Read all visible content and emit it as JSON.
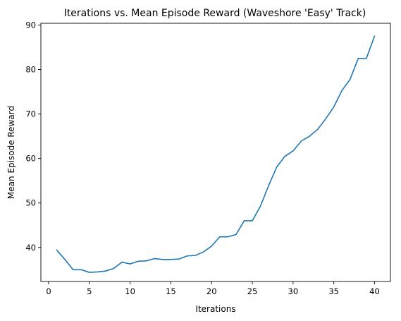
{
  "chart_data": {
    "type": "line",
    "title": "Iterations vs. Mean Episode Reward (Waveshore 'Easy' Track)",
    "xlabel": "Iterations",
    "ylabel": "Mean Episode Reward",
    "xlim": [
      -0.95,
      41.95
    ],
    "ylim": [
      32.35,
      90.4
    ],
    "xticks": [
      0,
      5,
      10,
      15,
      20,
      25,
      30,
      35,
      40
    ],
    "yticks": [
      40,
      50,
      60,
      70,
      80,
      90
    ],
    "grid": false,
    "series": [
      {
        "color": "#1f77b4",
        "x": [
          1,
          2,
          3,
          4,
          5,
          6,
          7,
          8,
          9,
          10,
          11,
          12,
          13,
          14,
          15,
          16,
          17,
          18,
          19,
          20,
          21,
          22,
          23,
          24,
          25,
          26,
          27,
          28,
          29,
          30,
          31,
          32,
          33,
          34,
          35,
          36,
          37,
          38,
          39,
          40
        ],
        "y": [
          39.4,
          37.3,
          35.0,
          35.0,
          34.4,
          34.5,
          34.7,
          35.3,
          36.7,
          36.3,
          36.9,
          37.0,
          37.5,
          37.3,
          37.3,
          37.4,
          38.1,
          38.2,
          39.0,
          40.3,
          42.4,
          42.4,
          42.9,
          46.0,
          46.0,
          49.3,
          53.9,
          58.1,
          60.5,
          61.7,
          63.9,
          65.0,
          66.5,
          68.9,
          71.6,
          75.3,
          77.8,
          82.5,
          82.5,
          87.5
        ]
      }
    ]
  }
}
